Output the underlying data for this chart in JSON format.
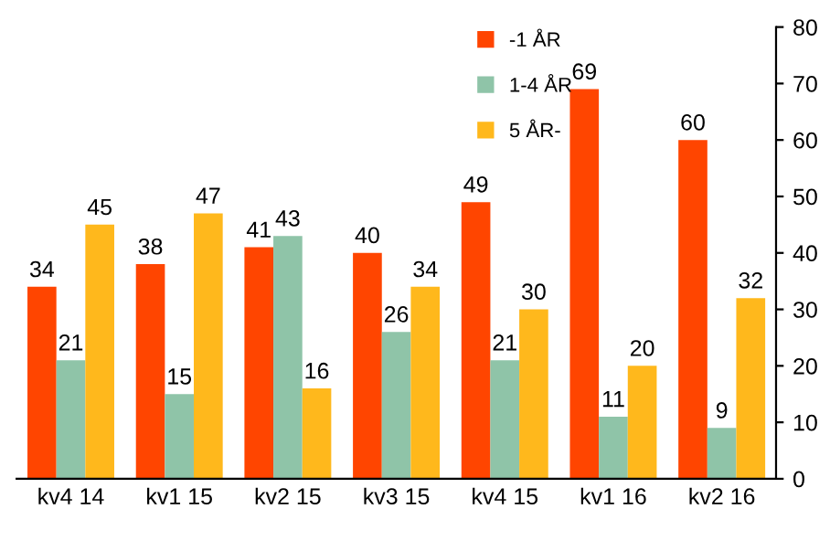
{
  "chart_data": {
    "type": "bar",
    "categories": [
      "kv4 14",
      "kv1 15",
      "kv2 15",
      "kv3 15",
      "kv4 15",
      "kv1 16",
      "kv2 16"
    ],
    "series": [
      {
        "name": "-1 ÅR",
        "color": "#ff4500",
        "values": [
          34,
          38,
          41,
          40,
          49,
          69,
          60
        ]
      },
      {
        "name": "1-4 ÅR",
        "color": "#8fc4a8",
        "values": [
          21,
          15,
          43,
          26,
          21,
          11,
          9
        ]
      },
      {
        "name": "5 ÅR-",
        "color": "#ffb81c",
        "values": [
          45,
          47,
          16,
          34,
          30,
          20,
          32
        ]
      }
    ],
    "ylim": [
      0,
      80
    ],
    "yticks": [
      0,
      10,
      20,
      30,
      40,
      50,
      60,
      70,
      80
    ],
    "data_labels": true,
    "legend": "top",
    "grid": false
  }
}
